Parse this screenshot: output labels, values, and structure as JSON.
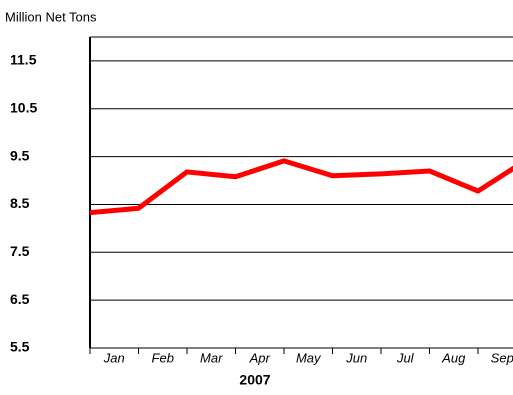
{
  "chart_data": {
    "type": "line",
    "y_label": "Million Net Tons",
    "x_label": "2007",
    "categories": [
      "Jan",
      "Feb",
      "Mar",
      "Apr",
      "May",
      "Jun",
      "Jul",
      "Aug",
      "Sep",
      null
    ],
    "series": [
      {
        "name": null,
        "color": "#ff0000",
        "values": [
          8.33,
          8.42,
          9.18,
          9.08,
          9.41,
          9.1,
          9.14,
          9.2,
          8.78,
          9.43
        ]
      }
    ],
    "ylim": [
      5.5,
      12.0
    ],
    "yticks": [
      5.5,
      6.5,
      7.5,
      8.5,
      9.5,
      10.5,
      11.5
    ],
    "grid": true
  }
}
